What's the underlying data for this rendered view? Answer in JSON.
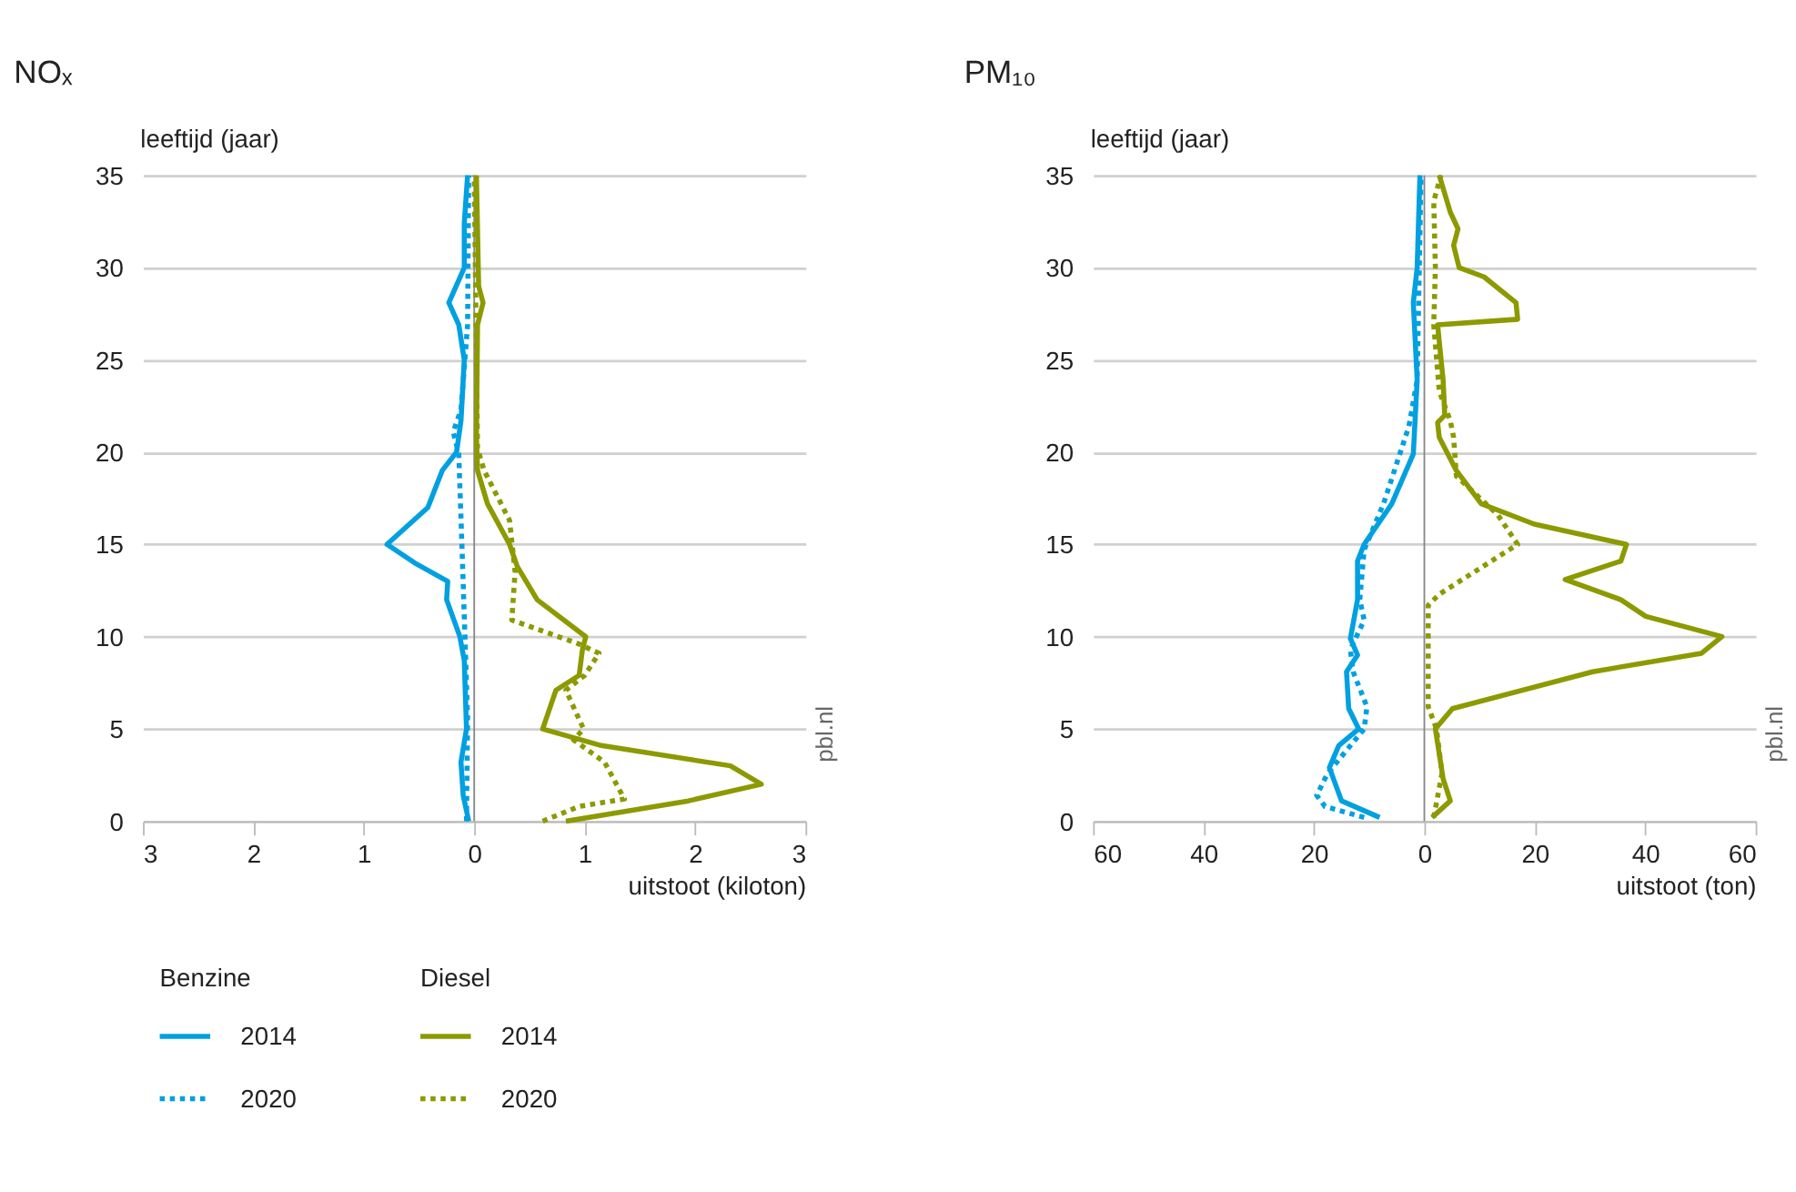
{
  "chart_data": [
    {
      "type": "line",
      "orientation": "horizontal",
      "title": "NOₓ",
      "ylabel": "leeftijd (jaar)",
      "xlabel": "uitstoot (kiloton)",
      "legend_title": [
        "Benzine",
        "Diesel"
      ],
      "legend": "bottom",
      "grid": "y",
      "xlim": [
        -3,
        3
      ],
      "xticks": [
        {
          "value": -3,
          "label": "3"
        },
        {
          "value": -2,
          "label": "2"
        },
        {
          "value": -1,
          "label": "1"
        },
        0,
        1,
        2,
        3
      ],
      "ylim": [
        0,
        35
      ],
      "yticks": [
        0,
        5,
        10,
        15,
        20,
        25,
        30,
        35
      ],
      "ref_lines": [
        {
          "axis": "x",
          "value": 0,
          "color": "#888888"
        }
      ],
      "annotations": [
        "pbl.nl"
      ],
      "series": [
        {
          "name": "2014",
          "color": "#00a0e1",
          "line_style": "solid",
          "x": [
            0,
            1.4,
            3.2,
            5,
            8.7,
            10,
            12,
            13,
            14,
            15,
            17,
            19,
            20,
            21.7,
            25,
            26.9,
            28.1,
            30,
            32.4,
            35
          ],
          "values": [
            -0.05,
            -0.1,
            -0.12,
            -0.07,
            -0.09,
            -0.13,
            -0.25,
            -0.24,
            -0.54,
            -0.79,
            -0.42,
            -0.29,
            -0.16,
            -0.12,
            -0.09,
            -0.14,
            -0.23,
            -0.09,
            -0.09,
            -0.06
          ]
        },
        {
          "name": "2020",
          "color": "#00a0e1",
          "line_style": "dotted",
          "x": [
            0,
            5.6,
            11.1,
            14.7,
            19.9,
            21.1,
            22.3,
            26.9,
            35
          ],
          "values": [
            -0.07,
            -0.06,
            -0.09,
            -0.11,
            -0.14,
            -0.19,
            -0.12,
            -0.06,
            -0.05
          ]
        },
        {
          "name": "2014",
          "color": "#8c9a00",
          "line_style": "solid",
          "x": [
            0,
            1.1,
            2,
            3,
            4.1,
            5,
            7.1,
            7.9,
            9.3,
            10,
            12,
            13.8,
            15,
            17.2,
            19,
            20.8,
            26.9,
            28.1,
            29,
            35
          ],
          "values": [
            0.83,
            1.94,
            2.6,
            2.32,
            1.15,
            0.62,
            0.74,
            0.95,
            0.98,
            1.01,
            0.57,
            0.39,
            0.32,
            0.12,
            0.03,
            0.02,
            0.03,
            0.08,
            0.04,
            0.02
          ]
        },
        {
          "name": "2020",
          "color": "#8c9a00",
          "line_style": "dotted",
          "x": [
            0,
            0.8,
            1.2,
            3.2,
            4.4,
            5,
            7.1,
            7.9,
            9.1,
            9.6,
            10.9,
            13.5,
            16.3,
            19,
            20.2,
            35
          ],
          "values": [
            0.62,
            0.95,
            1.36,
            1.18,
            0.9,
            0.99,
            0.83,
            1.0,
            1.13,
            0.95,
            0.34,
            0.37,
            0.32,
            0.09,
            0.03,
            0.0
          ]
        }
      ]
    },
    {
      "type": "line",
      "orientation": "horizontal",
      "title": "PM₁₀",
      "ylabel": "leeftijd (jaar)",
      "xlabel": "uitstoot (ton)",
      "grid": "y",
      "xlim": [
        -60,
        60
      ],
      "xticks": [
        {
          "value": -60,
          "label": "60"
        },
        {
          "value": -40,
          "label": "40"
        },
        {
          "value": -20,
          "label": "20"
        },
        0,
        20,
        40,
        60
      ],
      "ylim": [
        0,
        35
      ],
      "yticks": [
        0,
        5,
        10,
        15,
        20,
        25,
        30,
        35
      ],
      "ref_lines": [
        {
          "axis": "x",
          "value": 0,
          "color": "#888888"
        }
      ],
      "annotations": [
        "pbl.nl"
      ],
      "series": [
        {
          "color": "#00a0e1",
          "line_style": "solid",
          "x": [
            0.2,
            1.1,
            2.9,
            4.1,
            5,
            6.1,
            8.1,
            9,
            9.9,
            12,
            14.1,
            15,
            17.2,
            19.9,
            23.9,
            28.1,
            30,
            35
          ],
          "values": [
            -8.1,
            -15,
            -17.2,
            -15.5,
            -11.9,
            -13.7,
            -14.1,
            -12.1,
            -13.4,
            -12.1,
            -12.1,
            -10.9,
            -5.9,
            -2.0,
            -1.3,
            -2.0,
            -1.3,
            -0.8
          ]
        },
        {
          "color": "#00a0e1",
          "line_style": "dotted",
          "x": [
            0.2,
            0.8,
            1.4,
            2.6,
            5,
            6.2,
            8.1,
            9.3,
            10.9,
            12,
            14.7,
            17.2,
            21.4,
            23.9,
            35
          ],
          "values": [
            -10.9,
            -18,
            -19.5,
            -17.5,
            -10.9,
            -10.4,
            -12.9,
            -13.4,
            -10.9,
            -11.7,
            -10.9,
            -7.4,
            -2.8,
            -1.3,
            -0.6
          ]
        },
        {
          "color": "#8c9a00",
          "line_style": "solid",
          "x": [
            0.2,
            1.1,
            2.3,
            5,
            6.1,
            8.1,
            9.1,
            10,
            11.1,
            12,
            13.1,
            14.1,
            15,
            16.1,
            17.2,
            19,
            20.8,
            21.6,
            22,
            23.9,
            26.9,
            27.2,
            28.1,
            29.5,
            30,
            31.2,
            32.1,
            33,
            35
          ],
          "values": [
            1.4,
            4.7,
            3.4,
            2.0,
            5.1,
            30.5,
            50.2,
            53.9,
            40.1,
            35.6,
            25.5,
            35.6,
            36.6,
            19.9,
            10.3,
            5.8,
            2.7,
            2.4,
            3.7,
            3.4,
            2.4,
            16.9,
            16.6,
            10.8,
            6.3,
            5.3,
            6.1,
            4.7,
            2.7
          ]
        },
        {
          "color": "#8c9a00",
          "line_style": "dotted",
          "x": [
            0.2,
            2.6,
            5,
            6.2,
            11.7,
            12.3,
            15,
            16.6,
            18.7,
            20.8,
            21.7,
            23.3,
            26.9,
            30,
            33.6,
            35
          ],
          "values": [
            1.7,
            3.2,
            2.2,
            0.7,
            0.7,
            2.7,
            16.9,
            13.3,
            5.8,
            5.3,
            4.7,
            2.7,
            1.7,
            2.0,
            1.7,
            3.0
          ]
        }
      ]
    }
  ]
}
